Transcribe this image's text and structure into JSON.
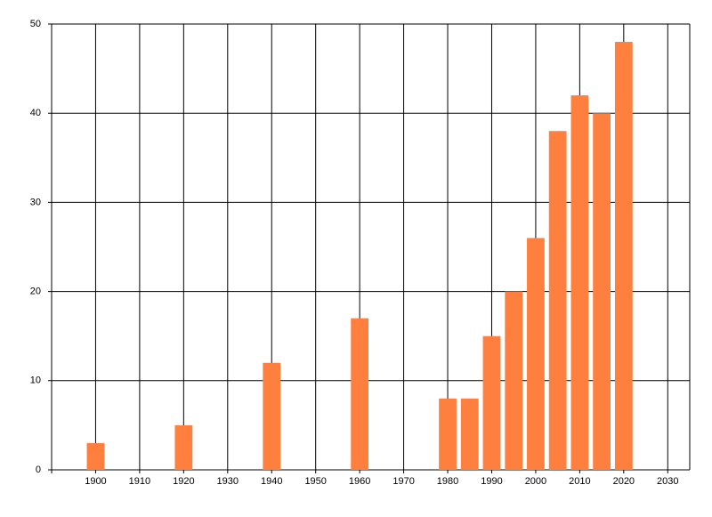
{
  "chart_data": {
    "type": "bar",
    "x": [
      1900,
      1920,
      1940,
      1960,
      1980,
      1985,
      1990,
      1995,
      2000,
      2005,
      2010,
      2015,
      2020
    ],
    "values": [
      3,
      5,
      12,
      17,
      8,
      8,
      15,
      20,
      26,
      38,
      42,
      40,
      48
    ],
    "color": "#ff7f3f",
    "xlim": [
      1890,
      2035
    ],
    "xticks": [
      1900,
      1910,
      1920,
      1930,
      1940,
      1950,
      1960,
      1970,
      1980,
      1990,
      2000,
      2010,
      2020,
      2030
    ],
    "ylim": [
      0,
      50
    ],
    "yticks": [
      0,
      10,
      20,
      30,
      40,
      50
    ],
    "grid": true
  }
}
